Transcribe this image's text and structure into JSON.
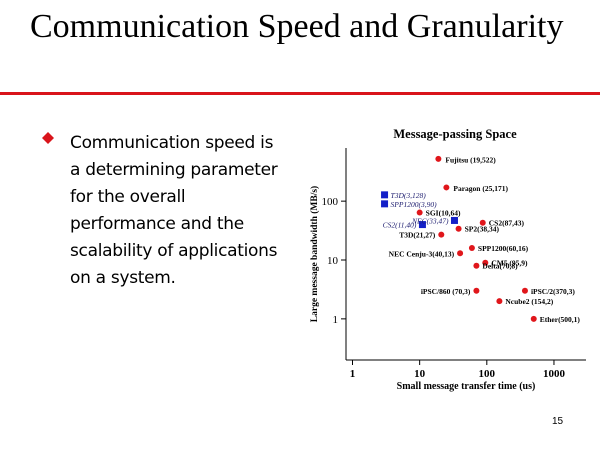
{
  "slide": {
    "title": "Communication Speed and Granularity",
    "bullet": "Communication speed is a determining parameter for the overall performance and the scalability of applications on a system.",
    "page_number": "15",
    "accent_color": "#d9141b",
    "bullet_color": "#d9141b",
    "bullet_icon": "diamond-bullet-icon"
  },
  "chart_data": {
    "type": "scatter",
    "title": "Message-passing Space",
    "xlabel": "Small message transfer time (us)",
    "ylabel": "Large message bandwidth (MB/s)",
    "xscale": "log",
    "yscale": "log",
    "xlim": [
      0.8,
      3000
    ],
    "ylim": [
      0.2,
      800
    ],
    "x_ticks": [
      1,
      10,
      100,
      1000
    ],
    "y_ticks": [
      1,
      10,
      100
    ],
    "x_tick_labels": [
      "1",
      "10",
      "100",
      "1000"
    ],
    "y_tick_labels": [
      "1",
      "10",
      "100"
    ],
    "grid": false,
    "series": [
      {
        "marker": "circle",
        "color": "#e0161b",
        "points": [
          {
            "label": "Fujitsu (19,522)",
            "x": 19,
            "y": 522
          },
          {
            "label": "Paragon (25,171)",
            "x": 25,
            "y": 171
          },
          {
            "label": "SGI(10,64)",
            "x": 10,
            "y": 64
          },
          {
            "label": "CS2(87,43)",
            "x": 87,
            "y": 43
          },
          {
            "label": "SP2(38,34)",
            "x": 38,
            "y": 34
          },
          {
            "label": "SPP1200(60,16)",
            "x": 60,
            "y": 16
          },
          {
            "label": "T3D(21,27)",
            "x": 21,
            "y": 27
          },
          {
            "label": "NEC Cenju-3(40,13)",
            "x": 40,
            "y": 13
          },
          {
            "label": "CM5 (95,9)",
            "x": 95,
            "y": 9
          },
          {
            "label": "Delta(70,8)",
            "x": 70,
            "y": 8
          },
          {
            "label": "iPSC/860 (70,3)",
            "x": 70,
            "y": 3
          },
          {
            "label": "iPSC/2(370,3)",
            "x": 370,
            "y": 3
          },
          {
            "label": "Ncube2 (154,2)",
            "x": 154,
            "y": 2
          },
          {
            "label": "Ether(500,1)",
            "x": 500,
            "y": 1
          }
        ]
      },
      {
        "marker": "square",
        "color": "#1420c8",
        "points": [
          {
            "label": "T3D(3,128)",
            "x": 3,
            "y": 128
          },
          {
            "label": "SPP1200(3,90)",
            "x": 3,
            "y": 90
          },
          {
            "label": "CS2(11,40)",
            "x": 11,
            "y": 40
          },
          {
            "label": "NEC(33,47)",
            "x": 33,
            "y": 47
          }
        ]
      }
    ]
  }
}
